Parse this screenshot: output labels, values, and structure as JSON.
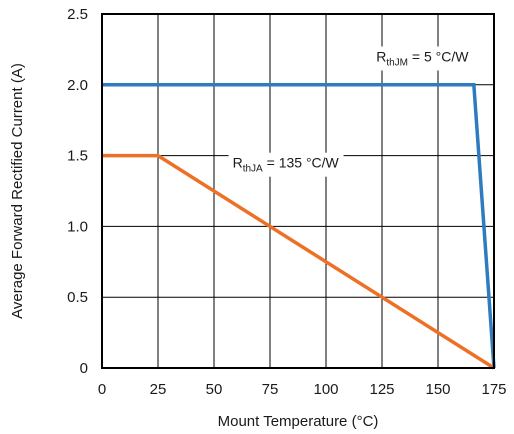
{
  "chart_data": {
    "type": "line",
    "title": "",
    "xlabel": "Mount Temperature (°C)",
    "ylabel": "Average Forward Rectified Current (A)",
    "xlim": [
      0,
      175
    ],
    "ylim": [
      0,
      2.5
    ],
    "grid": true,
    "x_ticks": [
      "0",
      "25",
      "50",
      "75",
      "100",
      "125",
      "150",
      "175"
    ],
    "y_ticks": [
      "0",
      "0.5",
      "1.0",
      "1.5",
      "2.0",
      "2.5"
    ],
    "series": [
      {
        "color": "#2e7bc0",
        "x": [
          0,
          166,
          175
        ],
        "y": [
          2.0,
          2.0,
          0
        ]
      },
      {
        "color": "#ed7125",
        "x": [
          0,
          25,
          175
        ],
        "y": [
          1.5,
          1.5,
          0
        ]
      }
    ],
    "annotations": [
      {
        "main": "R",
        "sub": "thJM",
        "rest": " = 5 °C/W",
        "x": 143,
        "y": 2.2
      },
      {
        "main": "R",
        "sub": "thJA",
        "rest": " = 135 °C/W",
        "x": 82,
        "y": 1.45
      }
    ]
  }
}
